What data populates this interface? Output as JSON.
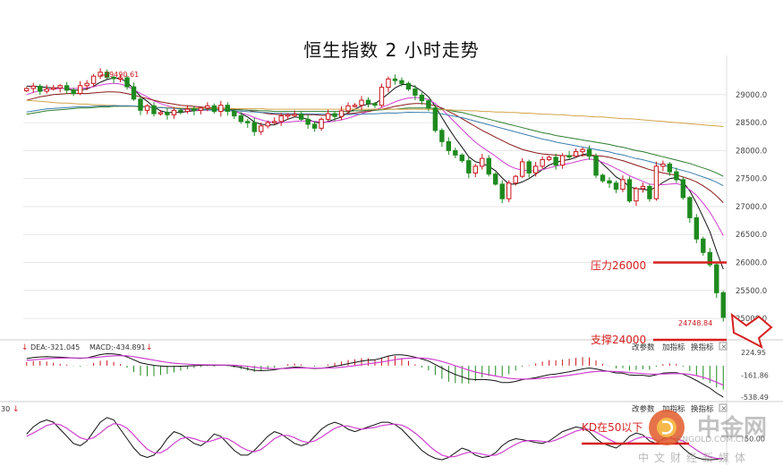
{
  "title": "恒生指数 2 小时走势",
  "chart_data": [
    {
      "type": "candlestick",
      "title": "恒生指数 2 小时走势",
      "ylim": [
        24650,
        29700
      ],
      "yticks": [
        "29000.0",
        "28500.0",
        "28000.0",
        "27500.0",
        "27000.0",
        "26500.0",
        "26000.0",
        "25500.0",
        "25000.0"
      ],
      "high_label": "29490.61",
      "low_label": "24748.84",
      "annotations": [
        "压力26000",
        "支撑24000"
      ],
      "resistance": 26000,
      "closes": [
        29110,
        29150,
        29060,
        29100,
        29120,
        29160,
        29080,
        29020,
        29160,
        29200,
        29330,
        29400,
        29310,
        29290,
        29300,
        29140,
        28920,
        28720,
        28800,
        28660,
        28680,
        28640,
        28720,
        28700,
        28740,
        28720,
        28760,
        28800,
        28700,
        28810,
        28700,
        28620,
        28520,
        28500,
        28340,
        28440,
        28500,
        28520,
        28620,
        28640,
        28650,
        28560,
        28470,
        28400,
        28560,
        28660,
        28610,
        28710,
        28800,
        28810,
        28900,
        28840,
        28810,
        29130,
        29280,
        29250,
        29200,
        29100,
        28990,
        28890,
        28760,
        28360,
        28160,
        28000,
        27920,
        27820,
        27600,
        27720,
        27860,
        27580,
        27400,
        27140,
        27420,
        27540,
        27800,
        27600,
        27720,
        27840,
        27880,
        27740,
        27910,
        27900,
        27980,
        28020,
        27900,
        27560,
        27460,
        27420,
        27310,
        27480,
        27100,
        27320,
        27360,
        27140,
        27720,
        27760,
        27620,
        27480,
        27160,
        26800,
        26420,
        26180,
        25960,
        25460,
        25020
      ],
      "ma_1": [
        29150,
        29150,
        29140,
        29130,
        29120,
        29120,
        29100,
        29080,
        29080,
        29100,
        29150,
        29220,
        29270,
        29300,
        29290,
        29220,
        29100,
        28970,
        28880,
        28780,
        28710,
        28680,
        28680,
        28680,
        28700,
        28710,
        28720,
        28740,
        28740,
        28760,
        28750,
        28710,
        28660,
        28600,
        28510,
        28470,
        28460,
        28460,
        28510,
        28560,
        28600,
        28590,
        28560,
        28510,
        28490,
        28520,
        28560,
        28600,
        28680,
        28740,
        28800,
        28830,
        28840,
        28920,
        29020,
        29120,
        29180,
        29180,
        29140,
        29060,
        28960,
        28790,
        28590,
        28400,
        28220,
        28060,
        27890,
        27800,
        27770,
        27720,
        27640,
        27510,
        27400,
        27400,
        27440,
        27500,
        27580,
        27660,
        27740,
        27790,
        27820,
        27840,
        27880,
        27930,
        27950,
        27870,
        27760,
        27650,
        27530,
        27460,
        27350,
        27320,
        27310,
        27290,
        27350,
        27430,
        27500,
        27520,
        27440,
        27280,
        27060,
        26810,
        26550,
        26200,
        25880
      ],
      "ma_2": [
        29000,
        29040,
        29070,
        29090,
        29100,
        29110,
        29110,
        29110,
        29110,
        29120,
        29140,
        29170,
        29190,
        29200,
        29190,
        29150,
        29090,
        29020,
        28960,
        28890,
        28840,
        28800,
        28770,
        28740,
        28730,
        28720,
        28720,
        28720,
        28730,
        28730,
        28720,
        28700,
        28670,
        28640,
        28590,
        28550,
        28520,
        28500,
        28500,
        28510,
        28520,
        28530,
        28530,
        28520,
        28510,
        28510,
        28530,
        28550,
        28580,
        28620,
        28660,
        28700,
        28730,
        28770,
        28820,
        28870,
        28910,
        28940,
        28950,
        28940,
        28910,
        28840,
        28740,
        28620,
        28500,
        28380,
        28260,
        28150,
        28060,
        27980,
        27900,
        27810,
        27730,
        27680,
        27650,
        27640,
        27640,
        27660,
        27690,
        27720,
        27750,
        27770,
        27800,
        27830,
        27850,
        27830,
        27790,
        27740,
        27680,
        27620,
        27550,
        27500,
        27450,
        27400,
        27390,
        27390,
        27400,
        27410,
        27380,
        27300,
        27200,
        27060,
        26900,
        26700,
        26480
      ],
      "ma_3": [
        28900,
        28930,
        28960,
        28980,
        29000,
        29010,
        29020,
        29020,
        29020,
        29020,
        29030,
        29040,
        29050,
        29050,
        29040,
        29020,
        28990,
        28960,
        28930,
        28900,
        28870,
        28850,
        28830,
        28810,
        28800,
        28790,
        28780,
        28770,
        28760,
        28760,
        28750,
        28740,
        28730,
        28720,
        28700,
        28680,
        28660,
        28650,
        28640,
        28640,
        28640,
        28640,
        28640,
        28640,
        28630,
        28630,
        28640,
        28650,
        28660,
        28670,
        28690,
        28700,
        28720,
        28740,
        28760,
        28790,
        28810,
        28830,
        28840,
        28840,
        28830,
        28800,
        28760,
        28700,
        28640,
        28570,
        28500,
        28430,
        28360,
        28300,
        28240,
        28180,
        28120,
        28070,
        28020,
        27990,
        27960,
        27940,
        27930,
        27920,
        27910,
        27910,
        27910,
        27910,
        27920,
        27910,
        27900,
        27880,
        27850,
        27820,
        27780,
        27740,
        27700,
        27660,
        27630,
        27600,
        27580,
        27560,
        27530,
        27490,
        27440,
        27370,
        27290,
        27190,
        27070
      ],
      "ma_4": [
        28650,
        28670,
        28690,
        28710,
        28720,
        28730,
        28740,
        28750,
        28760,
        28760,
        28770,
        28780,
        28780,
        28790,
        28790,
        28790,
        28790,
        28780,
        28780,
        28770,
        28770,
        28760,
        28760,
        28750,
        28750,
        28750,
        28740,
        28740,
        28740,
        28740,
        28730,
        28730,
        28730,
        28720,
        28720,
        28710,
        28710,
        28700,
        28700,
        28700,
        28700,
        28700,
        28700,
        28700,
        28700,
        28700,
        28700,
        28700,
        28700,
        28710,
        28710,
        28720,
        28720,
        28730,
        28740,
        28740,
        28750,
        28760,
        28760,
        28760,
        28760,
        28750,
        28740,
        28720,
        28700,
        28680,
        28650,
        28620,
        28590,
        28560,
        28530,
        28500,
        28470,
        28440,
        28410,
        28380,
        28350,
        28320,
        28300,
        28270,
        28250,
        28230,
        28210,
        28190,
        28170,
        28150,
        28130,
        28110,
        28080,
        28060,
        28030,
        28000,
        27980,
        27950,
        27920,
        27890,
        27860,
        27830,
        27800,
        27770,
        27730,
        27690,
        27650,
        27600,
        27540
      ],
      "ma_5": [
        28900,
        28890,
        28880,
        28870,
        28860,
        28850,
        28850,
        28840,
        28830,
        28830,
        28820,
        28820,
        28810,
        28810,
        28800,
        28800,
        28790,
        28790,
        28780,
        28780,
        28770,
        28770,
        28770,
        28760,
        28760,
        28760,
        28760,
        28760,
        28750,
        28750,
        28750,
        28750,
        28750,
        28750,
        28750,
        28750,
        28740,
        28740,
        28740,
        28740,
        28740,
        28740,
        28740,
        28740,
        28740,
        28740,
        28740,
        28740,
        28740,
        28740,
        28740,
        28740,
        28740,
        28740,
        28740,
        28740,
        28740,
        28740,
        28740,
        28740,
        28740,
        28730,
        28730,
        28730,
        28720,
        28720,
        28710,
        28710,
        28700,
        28700,
        28690,
        28690,
        28680,
        28680,
        28670,
        28670,
        28660,
        28650,
        28650,
        28640,
        28640,
        28630,
        28620,
        28620,
        28610,
        28600,
        28600,
        28590,
        28580,
        28570,
        28570,
        28560,
        28550,
        28540,
        28530,
        28520,
        28510,
        28500,
        28490,
        28480,
        28470,
        28460,
        28450,
        28440,
        28430
      ]
    },
    {
      "type": "line",
      "legend": [
        "DEA:-321.045",
        "MACD:-434.891"
      ],
      "ylim": [
        -600,
        320
      ],
      "yticks": [
        "224.95",
        "-161.86",
        "-538.49"
      ],
      "controls": [
        "改参数",
        "加指标",
        "换指标"
      ],
      "dif": [
        120,
        140,
        150,
        155,
        150,
        145,
        140,
        130,
        125,
        135,
        160,
        190,
        205,
        200,
        185,
        150,
        100,
        50,
        25,
        5,
        -5,
        -15,
        -15,
        -10,
        -5,
        0,
        5,
        10,
        5,
        10,
        5,
        -10,
        -30,
        -55,
        -80,
        -85,
        -80,
        -70,
        -50,
        -35,
        -25,
        -30,
        -40,
        -50,
        -45,
        -30,
        -10,
        10,
        35,
        55,
        80,
        95,
        100,
        130,
        165,
        185,
        185,
        170,
        145,
        115,
        80,
        20,
        -40,
        -100,
        -150,
        -190,
        -230,
        -240,
        -235,
        -245,
        -260,
        -290,
        -290,
        -270,
        -240,
        -225,
        -205,
        -180,
        -155,
        -145,
        -125,
        -105,
        -80,
        -55,
        -40,
        -55,
        -80,
        -100,
        -125,
        -130,
        -160,
        -165,
        -165,
        -180,
        -155,
        -130,
        -120,
        -120,
        -145,
        -195,
        -255,
        -320,
        -385,
        -470,
        -540
      ],
      "dea": [
        90,
        100,
        110,
        120,
        125,
        130,
        132,
        133,
        132,
        133,
        138,
        148,
        160,
        168,
        172,
        168,
        155,
        135,
        115,
        95,
        75,
        57,
        43,
        33,
        25,
        20,
        17,
        15,
        13,
        12,
        11,
        7,
        0,
        -12,
        -27,
        -39,
        -47,
        -52,
        -51,
        -48,
        -43,
        -41,
        -41,
        -43,
        -43,
        -41,
        -35,
        -26,
        -14,
        0,
        16,
        32,
        45,
        62,
        82,
        102,
        119,
        129,
        133,
        130,
        120,
        100,
        72,
        38,
        0,
        -38,
        -76,
        -109,
        -134,
        -156,
        -177,
        -199,
        -217,
        -228,
        -230,
        -229,
        -224,
        -215,
        -203,
        -192,
        -178,
        -164,
        -147,
        -129,
        -111,
        -100,
        -96,
        -97,
        -102,
        -108,
        -118,
        -128,
        -135,
        -144,
        -146,
        -143,
        -138,
        -135,
        -137,
        -149,
        -170,
        -200,
        -237,
        -284,
        -335
      ]
    },
    {
      "type": "line",
      "legend": [
        "30"
      ],
      "ylim": [
        -10,
        110
      ],
      "yticks": [
        "50.00"
      ],
      "controls": [
        "改参数",
        "加指标",
        "换指标"
      ],
      "annotations": [
        "KD在50以下"
      ],
      "k": [
        60,
        75,
        85,
        90,
        85,
        70,
        55,
        40,
        35,
        45,
        65,
        85,
        95,
        90,
        70,
        50,
        30,
        15,
        10,
        15,
        30,
        50,
        65,
        60,
        50,
        40,
        35,
        45,
        60,
        55,
        40,
        25,
        15,
        15,
        25,
        40,
        55,
        65,
        60,
        50,
        40,
        35,
        40,
        55,
        70,
        80,
        85,
        80,
        70,
        65,
        70,
        75,
        80,
        85,
        85,
        80,
        70,
        55,
        40,
        25,
        15,
        8,
        5,
        10,
        20,
        30,
        25,
        15,
        10,
        12,
        20,
        35,
        45,
        50,
        48,
        45,
        42,
        40,
        45,
        55,
        65,
        70,
        75,
        72,
        65,
        50,
        40,
        35,
        30,
        40,
        55,
        62,
        58,
        45,
        40,
        50,
        55,
        45,
        30,
        18,
        10,
        6,
        5,
        6,
        8
      ],
      "d": [
        55,
        62,
        70,
        78,
        82,
        80,
        72,
        62,
        52,
        48,
        52,
        62,
        74,
        82,
        80,
        72,
        58,
        42,
        28,
        20,
        20,
        28,
        40,
        50,
        53,
        50,
        45,
        43,
        47,
        52,
        50,
        42,
        32,
        25,
        22,
        27,
        38,
        50,
        57,
        57,
        52,
        45,
        42,
        45,
        53,
        63,
        72,
        77,
        77,
        73,
        70,
        72,
        74,
        78,
        80,
        81,
        79,
        72,
        62,
        50,
        36,
        24,
        15,
        11,
        12,
        17,
        21,
        20,
        17,
        14,
        15,
        21,
        30,
        38,
        44,
        46,
        46,
        44,
        43,
        47,
        53,
        60,
        66,
        70,
        70,
        64,
        56,
        48,
        41,
        38,
        43,
        50,
        54,
        52,
        47,
        46,
        50,
        50,
        45,
        36,
        26,
        17,
        11,
        8,
        7
      ]
    }
  ],
  "watermark": {
    "name": "中金网",
    "url": "CNGOLD.COM.CN",
    "sub": "中文财经新媒体"
  }
}
